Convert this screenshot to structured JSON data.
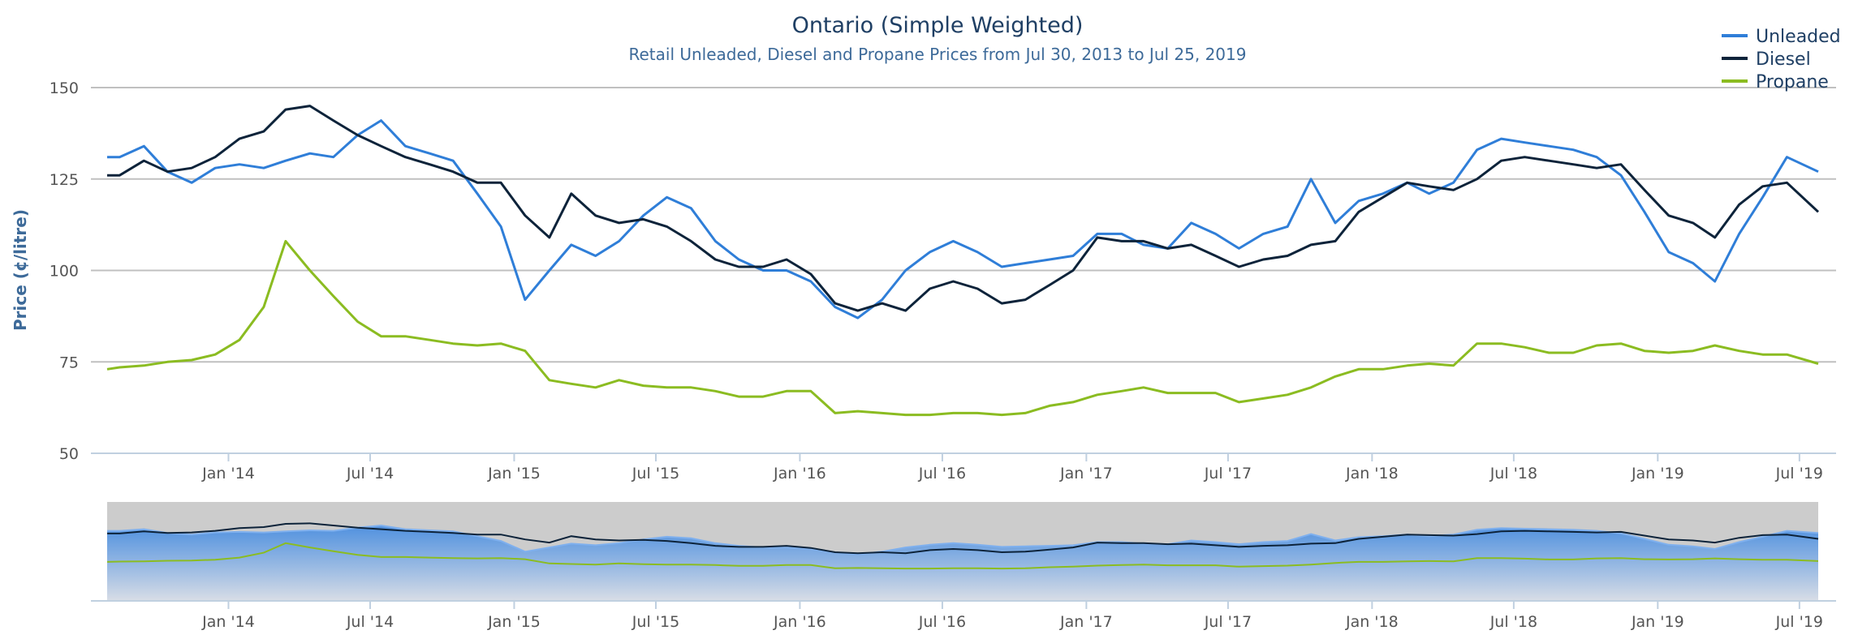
{
  "chart_data": {
    "type": "line",
    "title": "Ontario (Simple Weighted)",
    "subtitle": "Retail Unleaded, Diesel and Propane Prices from Jul 30, 2013 to Jul 25, 2019",
    "ylabel": "Price (¢/litre)",
    "xlabel": "",
    "ylim": [
      50,
      150
    ],
    "yticks": [
      "50",
      "75",
      "100",
      "125",
      "150"
    ],
    "xticks": [
      {
        "date": "2014-01-01",
        "label": "Jan '14"
      },
      {
        "date": "2014-07-01",
        "label": "Jul '14"
      },
      {
        "date": "2015-01-01",
        "label": "Jan '15"
      },
      {
        "date": "2015-07-01",
        "label": "Jul '15"
      },
      {
        "date": "2016-01-01",
        "label": "Jan '16"
      },
      {
        "date": "2016-07-01",
        "label": "Jul '16"
      },
      {
        "date": "2017-01-01",
        "label": "Jan '17"
      },
      {
        "date": "2017-07-01",
        "label": "Jul '17"
      },
      {
        "date": "2018-01-01",
        "label": "Jan '18"
      },
      {
        "date": "2018-07-01",
        "label": "Jul '18"
      },
      {
        "date": "2019-01-01",
        "label": "Jan '19"
      },
      {
        "date": "2019-07-01",
        "label": "Jul '19"
      }
    ],
    "xlim": [
      "2013-07-30",
      "2019-07-25"
    ],
    "grid": true,
    "legend_position": "top-right",
    "navigator": true,
    "x": [
      "2013-07-30",
      "2013-08",
      "2013-09",
      "2013-10",
      "2013-11",
      "2013-12",
      "2014-01",
      "2014-02",
      "2014-03",
      "2014-04",
      "2014-05",
      "2014-06",
      "2014-07",
      "2014-08",
      "2014-09",
      "2014-10",
      "2014-11",
      "2014-12",
      "2015-01",
      "2015-02",
      "2015-03",
      "2015-04",
      "2015-05",
      "2015-06",
      "2015-07",
      "2015-08",
      "2015-09",
      "2015-10",
      "2015-11",
      "2015-12",
      "2016-01",
      "2016-02",
      "2016-03",
      "2016-04",
      "2016-05",
      "2016-06",
      "2016-07",
      "2016-08",
      "2016-09",
      "2016-10",
      "2016-11",
      "2016-12",
      "2017-01",
      "2017-02",
      "2017-03",
      "2017-04",
      "2017-05",
      "2017-06",
      "2017-07",
      "2017-08",
      "2017-09",
      "2017-10",
      "2017-11",
      "2017-12",
      "2018-01",
      "2018-02",
      "2018-03",
      "2018-04",
      "2018-05",
      "2018-06",
      "2018-07",
      "2018-08",
      "2018-09",
      "2018-10",
      "2018-11",
      "2018-12",
      "2019-01",
      "2019-02",
      "2019-03",
      "2019-04",
      "2019-05",
      "2019-06",
      "2019-07-25"
    ],
    "series": [
      {
        "name": "Unleaded",
        "color": "#2f7ed8",
        "values": [
          131,
          131,
          134,
          127,
          124,
          128,
          129,
          128,
          130,
          132,
          131,
          137,
          141,
          134,
          132,
          130,
          121,
          112,
          92,
          100,
          107,
          104,
          108,
          115,
          120,
          117,
          108,
          103,
          100,
          100,
          97,
          90,
          87,
          92,
          100,
          105,
          108,
          105,
          101,
          102,
          103,
          104,
          110,
          110,
          107,
          106,
          113,
          110,
          106,
          110,
          112,
          125,
          113,
          119,
          121,
          124,
          121,
          124,
          133,
          136,
          135,
          134,
          133,
          131,
          126,
          116,
          105,
          102,
          97,
          110,
          120,
          131,
          127
        ]
      },
      {
        "name": "Diesel",
        "color": "#0d233a",
        "values": [
          126,
          126,
          130,
          127,
          128,
          131,
          136,
          138,
          144,
          145,
          141,
          137,
          134,
          131,
          129,
          127,
          124,
          124,
          115,
          109,
          121,
          115,
          113,
          114,
          112,
          108,
          103,
          101,
          101,
          103,
          99,
          91,
          89,
          91,
          89,
          95,
          97,
          95,
          91,
          92,
          96,
          100,
          109,
          108,
          108,
          106,
          107,
          104,
          101,
          103,
          104,
          107,
          108,
          116,
          120,
          124,
          123,
          122,
          125,
          130,
          131,
          130,
          129,
          128,
          129,
          122,
          115,
          113,
          109,
          118,
          123,
          124,
          116
        ]
      },
      {
        "name": "Propane",
        "color": "#8bbc21",
        "values": [
          73,
          73.5,
          74,
          75,
          75.5,
          77,
          81,
          90,
          108,
          100,
          93,
          86,
          82,
          82,
          81,
          80,
          79.5,
          80,
          78,
          70,
          69,
          68,
          70,
          68.5,
          68,
          68,
          67,
          65.5,
          65.5,
          67,
          67,
          61,
          61.5,
          61,
          60.5,
          60.5,
          61,
          61,
          60.5,
          61,
          63,
          64,
          66,
          67,
          68,
          66.5,
          66.5,
          66.5,
          64,
          65,
          66,
          68,
          71,
          73,
          73,
          74,
          74.5,
          74,
          80,
          80,
          79,
          77.5,
          77.5,
          79.5,
          80,
          78,
          77.5,
          78,
          79.5,
          78,
          77,
          77,
          74.5
        ]
      }
    ]
  }
}
